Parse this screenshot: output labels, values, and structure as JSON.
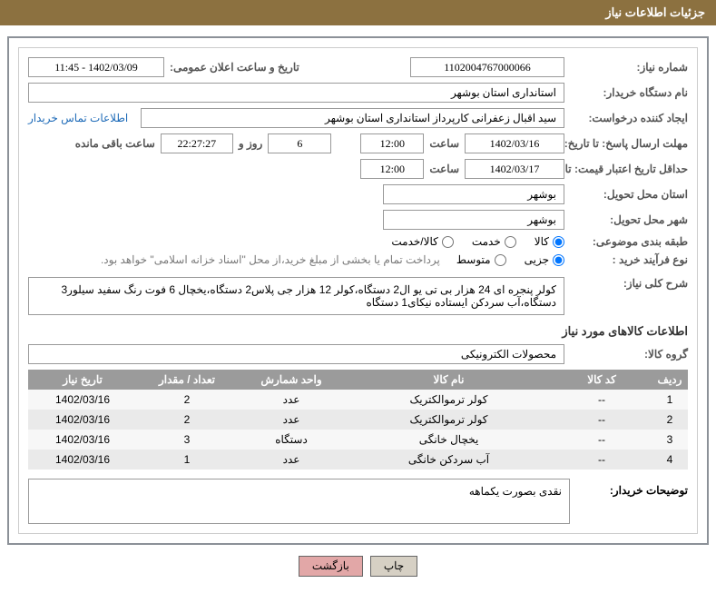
{
  "header": {
    "title": "جزئیات اطلاعات نیاز"
  },
  "fields": {
    "need_no_label": "شماره نیاز:",
    "need_no": "1102004767000066",
    "announce_label": "تاریخ و ساعت اعلان عمومی:",
    "announce_value": "1402/03/09 - 11:45",
    "buyer_org_label": "نام دستگاه خریدار:",
    "buyer_org": "استانداری استان بوشهر",
    "requester_label": "ایجاد کننده درخواست:",
    "requester": "سید اقبال زعفرانی کارپرداز استانداری استان بوشهر",
    "contact_link": "اطلاعات تماس خریدار",
    "deadline_label": "مهلت ارسال پاسخ: تا تاریخ:",
    "deadline_date": "1402/03/16",
    "time_label": "ساعت",
    "deadline_time": "12:00",
    "days_value": "6",
    "days_suffix": "روز و",
    "countdown": "22:27:27",
    "remain_suffix": "ساعت باقی مانده",
    "validity_label": "حداقل تاریخ اعتبار قیمت: تا تاریخ:",
    "validity_date": "1402/03/17",
    "validity_time": "12:00",
    "province_label": "استان محل تحویل:",
    "province": "بوشهر",
    "city_label": "شهر محل تحویل:",
    "city": "بوشهر",
    "category_label": "طبقه بندی موضوعی:",
    "cat_goods": "کالا",
    "cat_service": "خدمت",
    "cat_both": "کالا/خدمت",
    "process_label": "نوع فرآیند خرید :",
    "proc_small": "جزیی",
    "proc_medium": "متوسط",
    "proc_note": "پرداخت تمام یا بخشی از مبلغ خرید،از محل \"اسناد خزانه اسلامی\" خواهد بود.",
    "overall_label": "شرح کلی نیاز:",
    "overall_text": "کولر پنجره ای 24 هزار بی تی یو ال2 دستگاه،کولر 12 هزار جی پلاس2 دستگاه،یخچال 6 فوت رنگ سفید سیلور3 دستگاه،آب سردکن ایستاده نیکای1 دستگاه",
    "items_title": "اطلاعات کالاهای مورد نیاز",
    "group_label": "گروه کالا:",
    "group_value": "محصولات الکترونیکی",
    "buyer_notes_label": "توضیحات خریدار:",
    "buyer_notes": "نقدی بصورت یکماهه"
  },
  "table": {
    "headers": {
      "idx": "ردیف",
      "code": "کد کالا",
      "name": "نام کالا",
      "unit": "واحد شمارش",
      "qty": "تعداد / مقدار",
      "date": "تاریخ نیاز"
    },
    "rows": [
      {
        "idx": "1",
        "code": "--",
        "name": "کولر ترموالکتریک",
        "unit": "عدد",
        "qty": "2",
        "date": "1402/03/16"
      },
      {
        "idx": "2",
        "code": "--",
        "name": "کولر ترموالکتریک",
        "unit": "عدد",
        "qty": "2",
        "date": "1402/03/16"
      },
      {
        "idx": "3",
        "code": "--",
        "name": "یخچال خانگی",
        "unit": "دستگاه",
        "qty": "3",
        "date": "1402/03/16"
      },
      {
        "idx": "4",
        "code": "--",
        "name": "آب سردکن خانگی",
        "unit": "عدد",
        "qty": "1",
        "date": "1402/03/16"
      }
    ]
  },
  "buttons": {
    "print": "چاپ",
    "back": "بازگشت"
  }
}
